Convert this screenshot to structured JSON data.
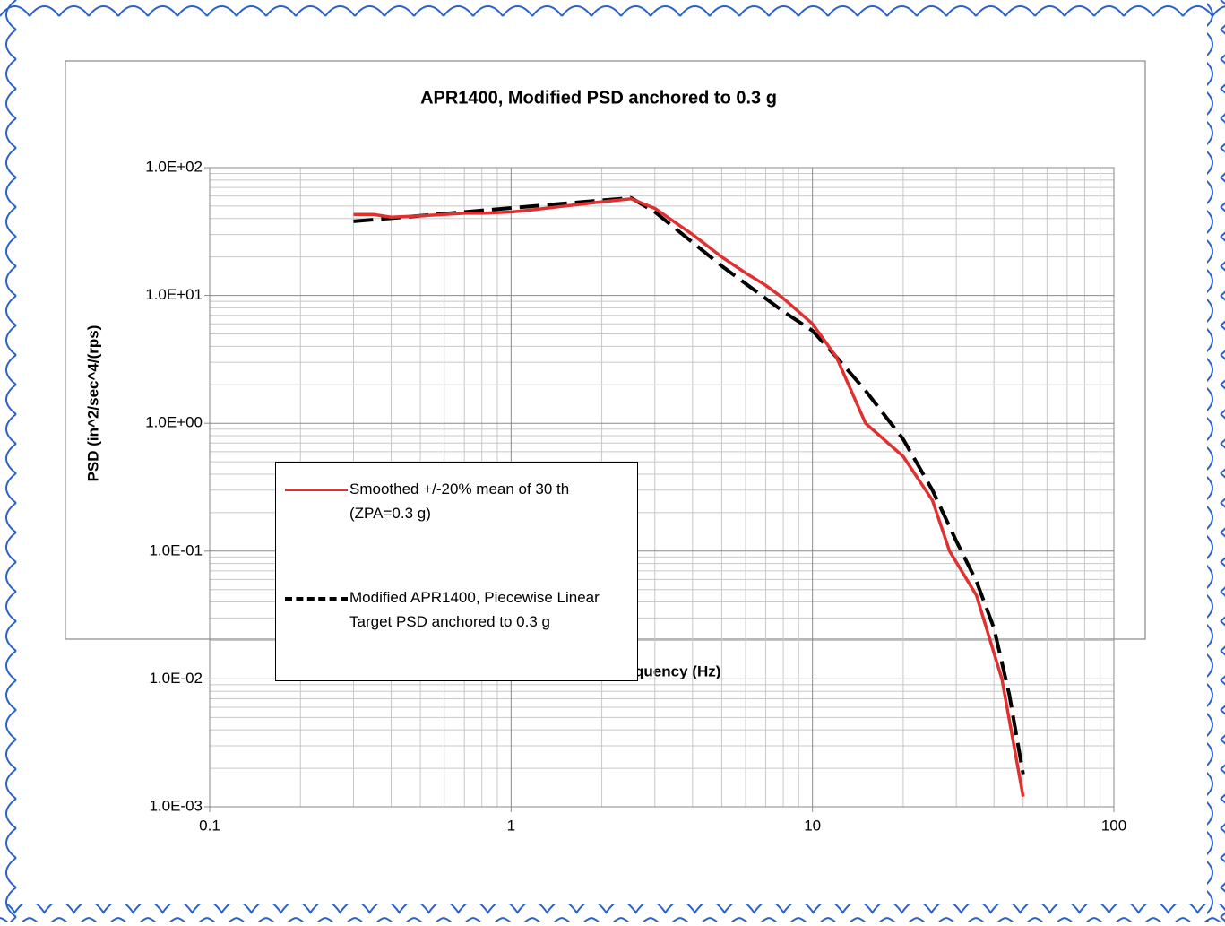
{
  "chart_data": {
    "type": "line",
    "title": "APR1400,  Modified PSD anchored to 0.3 g",
    "x_label": "Frequency (Hz)",
    "y_label": "PSD (in^2/sec^4/(rps)",
    "xlog": true,
    "ylog": true,
    "grid": true,
    "minor_grid": true,
    "xlim": [
      0.1,
      100
    ],
    "xticks": [
      0.1,
      1,
      10,
      100
    ],
    "ylim": [
      0.001,
      100
    ],
    "yticks": [
      {
        "value": 0.001,
        "label": "1.0E-03"
      },
      {
        "value": 0.01,
        "label": "1.0E-02"
      },
      {
        "value": 0.1,
        "label": "1.0E-01"
      },
      {
        "value": 1,
        "label": "1.0E+00"
      },
      {
        "value": 10,
        "label": "1.0E+01"
      },
      {
        "value": 100,
        "label": "1.0E+02"
      }
    ],
    "series": [
      {
        "name": "Smoothed +/-20% mean of 30 th (ZPA=0.3 g)",
        "color": "#e03030",
        "dash": false,
        "x": [
          0.3,
          0.35,
          0.4,
          0.5,
          0.6,
          0.7,
          0.8,
          1.0,
          1.2,
          1.5,
          2.0,
          2.5,
          3,
          4,
          5,
          6,
          7,
          8,
          10,
          12,
          15,
          20,
          25,
          28.5,
          35,
          42.5,
          50
        ],
        "values": [
          43,
          43,
          41,
          42,
          43,
          44,
          44,
          45,
          47,
          50,
          54,
          57,
          48,
          30,
          20,
          15,
          12,
          9.5,
          6,
          3.3,
          1.0,
          0.55,
          0.25,
          0.1,
          0.045,
          0.01,
          0.0012
        ]
      },
      {
        "name": "Modified APR1400, Piecewise Linear Target PSD anchored to 0.3 g",
        "color": "#000000",
        "dash": true,
        "x": [
          0.3,
          2.5,
          3,
          5,
          8,
          10,
          12,
          15,
          20,
          25,
          30,
          35,
          40,
          45,
          50
        ],
        "values": [
          38,
          58,
          45,
          17,
          7.5,
          5.3,
          3.3,
          1.8,
          0.75,
          0.3,
          0.12,
          0.058,
          0.025,
          0.0075,
          0.0018
        ]
      }
    ]
  }
}
